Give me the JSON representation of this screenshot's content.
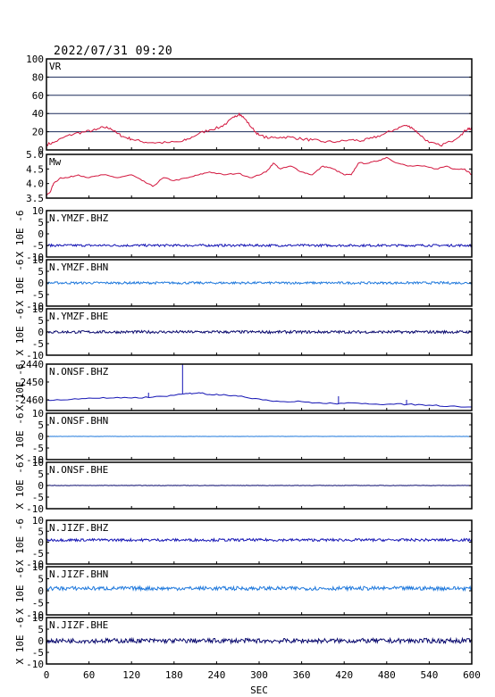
{
  "header": {
    "datestamp": "2022/07/31 09:20"
  },
  "colors": {
    "vr": "#d2143c",
    "mw": "#d2143c",
    "dark_blue": "#1414b4",
    "light_blue": "#1e78dc",
    "navy": "#0a0a6e",
    "grid": "#1a2a5a",
    "frame": "#000000"
  },
  "chart_data": [
    {
      "type": "line",
      "label": "VR",
      "ylim": [
        0,
        100
      ],
      "yticks": [
        0,
        20,
        40,
        60,
        80,
        100
      ],
      "ytick_labels": [
        "0",
        "20",
        "40",
        "60",
        "80",
        "100"
      ],
      "grid": true,
      "color_key": "vr",
      "x": [
        0,
        10,
        25,
        40,
        55,
        70,
        80,
        90,
        100,
        110,
        120,
        135,
        150,
        170,
        190,
        200,
        215,
        230,
        245,
        255,
        265,
        272,
        280,
        290,
        300,
        315,
        330,
        345,
        360,
        375,
        390,
        410,
        430,
        445,
        460,
        475,
        490,
        505,
        515,
        525,
        540,
        555,
        570,
        585,
        595,
        600
      ],
      "y": [
        6,
        8,
        14,
        18,
        20,
        22,
        25,
        24,
        18,
        14,
        12,
        9,
        8,
        8,
        9,
        12,
        18,
        22,
        25,
        30,
        36,
        40,
        34,
        24,
        16,
        13,
        14,
        14,
        12,
        11,
        9,
        9,
        11,
        10,
        13,
        17,
        22,
        27,
        25,
        18,
        8,
        5,
        9,
        17,
        24,
        22
      ]
    },
    {
      "type": "line",
      "label": "Mw",
      "ylim": [
        3.5,
        5.0
      ],
      "yticks": [
        3.5,
        4.0,
        4.5,
        5.0
      ],
      "ytick_labels": [
        "3.5",
        "4.0",
        "4.5",
        "5.0"
      ],
      "grid": false,
      "color_key": "mw",
      "x": [
        0,
        5,
        10,
        20,
        30,
        45,
        60,
        80,
        100,
        120,
        135,
        150,
        165,
        180,
        200,
        215,
        230,
        250,
        270,
        290,
        310,
        320,
        330,
        345,
        360,
        375,
        390,
        405,
        420,
        430,
        440,
        455,
        470,
        480,
        495,
        510,
        530,
        550,
        565,
        575,
        590,
        600
      ],
      "y": [
        3.6,
        3.7,
        4.0,
        4.2,
        4.2,
        4.3,
        4.2,
        4.3,
        4.2,
        4.3,
        4.1,
        3.9,
        4.2,
        4.1,
        4.2,
        4.3,
        4.4,
        4.3,
        4.35,
        4.2,
        4.4,
        4.7,
        4.5,
        4.6,
        4.4,
        4.3,
        4.6,
        4.5,
        4.3,
        4.3,
        4.7,
        4.7,
        4.8,
        4.9,
        4.7,
        4.6,
        4.6,
        4.5,
        4.6,
        4.5,
        4.5,
        4.3
      ]
    },
    {
      "type": "line",
      "label": "N.YMZF.BHZ",
      "ylabel": "X 10E -6",
      "ylim": [
        -10,
        10
      ],
      "yticks": [
        -10,
        -5,
        0,
        5,
        10
      ],
      "ytick_labels": [
        "-10",
        "-5",
        "0",
        "5",
        "10"
      ],
      "baseline": -5,
      "amplitude": 0.5,
      "color_key": "dark_blue"
    },
    {
      "type": "line",
      "label": "N.YMZF.BHN",
      "ylabel": "X 10E -6",
      "ylim": [
        -10,
        10
      ],
      "yticks": [
        -10,
        -5,
        0,
        5,
        10
      ],
      "ytick_labels": [
        "-10",
        "-5",
        "0",
        "5",
        "10"
      ],
      "baseline": 0,
      "amplitude": 0.5,
      "color_key": "light_blue"
    },
    {
      "type": "line",
      "label": "N.YMZF.BHE",
      "ylabel": "X 10E -6",
      "ylim": [
        -10,
        10
      ],
      "yticks": [
        -10,
        -5,
        0,
        5,
        10
      ],
      "ytick_labels": [
        "-10",
        "-5",
        "0",
        "5",
        "10"
      ],
      "baseline": 0,
      "amplitude": 0.6,
      "color_key": "navy"
    },
    {
      "type": "line",
      "label": "N.ONSF.BHZ",
      "ylabel": "X 10E -6",
      "ylim": [
        -2466,
        -2440
      ],
      "yticks": [
        -2460,
        -2450,
        -2440
      ],
      "ytick_labels": [
        "-2460",
        "-2450",
        "-2440"
      ],
      "color_key": "dark_blue",
      "x": [
        0,
        30,
        60,
        90,
        120,
        150,
        180,
        200,
        215,
        230,
        250,
        270,
        300,
        330,
        360,
        390,
        420,
        450,
        480,
        510,
        540,
        570,
        600
      ],
      "y": [
        -2460,
        -2460,
        -2459,
        -2459,
        -2459,
        -2458.5,
        -2457.5,
        -2456.5,
        -2456,
        -2457,
        -2457,
        -2458,
        -2459.5,
        -2461,
        -2461,
        -2462,
        -2462,
        -2462,
        -2462.5,
        -2462.5,
        -2463,
        -2463.5,
        -2464
      ],
      "spikes": [
        {
          "x": 144,
          "y": -2456
        },
        {
          "x": 192,
          "y": -2440
        },
        {
          "x": 412,
          "y": -2458
        },
        {
          "x": 508,
          "y": -2460
        }
      ]
    },
    {
      "type": "line",
      "label": "N.ONSF.BHN",
      "ylabel": "X 10E -6",
      "ylim": [
        -10,
        10
      ],
      "yticks": [
        -10,
        -5,
        0,
        5,
        10
      ],
      "ytick_labels": [
        "-10",
        "-5",
        "0",
        "5",
        "10"
      ],
      "baseline": 0,
      "amplitude": 0.05,
      "color_key": "light_blue"
    },
    {
      "type": "line",
      "label": "N.ONSF.BHE",
      "ylabel": "X 10E -6",
      "ylim": [
        -10,
        10
      ],
      "yticks": [
        -10,
        -5,
        0,
        5,
        10
      ],
      "ytick_labels": [
        "-10",
        "-5",
        "0",
        "5",
        "10"
      ],
      "baseline": 0,
      "amplitude": 0.08,
      "color_key": "navy"
    },
    {
      "type": "line",
      "label": "N.JIZF.BHZ",
      "ylabel": "X 10E -6",
      "ylim": [
        -10,
        10
      ],
      "yticks": [
        -10,
        -5,
        0,
        5,
        10
      ],
      "ytick_labels": [
        "-10",
        "-5",
        "0",
        "5",
        "10"
      ],
      "baseline": 1,
      "amplitude": 0.6,
      "color_key": "dark_blue"
    },
    {
      "type": "line",
      "label": "N.JIZF.BHN",
      "ylabel": "X 10E -6",
      "ylim": [
        -10,
        10
      ],
      "yticks": [
        -10,
        -5,
        0,
        5,
        10
      ],
      "ytick_labels": [
        "-10",
        "-5",
        "0",
        "5",
        "10"
      ],
      "baseline": 1,
      "amplitude": 0.8,
      "color_key": "light_blue"
    },
    {
      "type": "line",
      "label": "N.JIZF.BHE",
      "ylabel": "X 10E -6",
      "ylim": [
        -10,
        10
      ],
      "yticks": [
        -10,
        -5,
        0,
        5,
        10
      ],
      "ytick_labels": [
        "-10",
        "-5",
        "0",
        "5",
        "10"
      ],
      "baseline": 0,
      "amplitude": 1.0,
      "color_key": "navy"
    }
  ],
  "x_axis": {
    "label": "SEC",
    "xlim": [
      0,
      600
    ],
    "ticks": [
      0,
      60,
      120,
      180,
      240,
      300,
      360,
      420,
      480,
      540,
      600
    ],
    "tick_labels": [
      "0",
      "60",
      "120",
      "180",
      "240",
      "300",
      "360",
      "420",
      "480",
      "540",
      "600"
    ]
  }
}
